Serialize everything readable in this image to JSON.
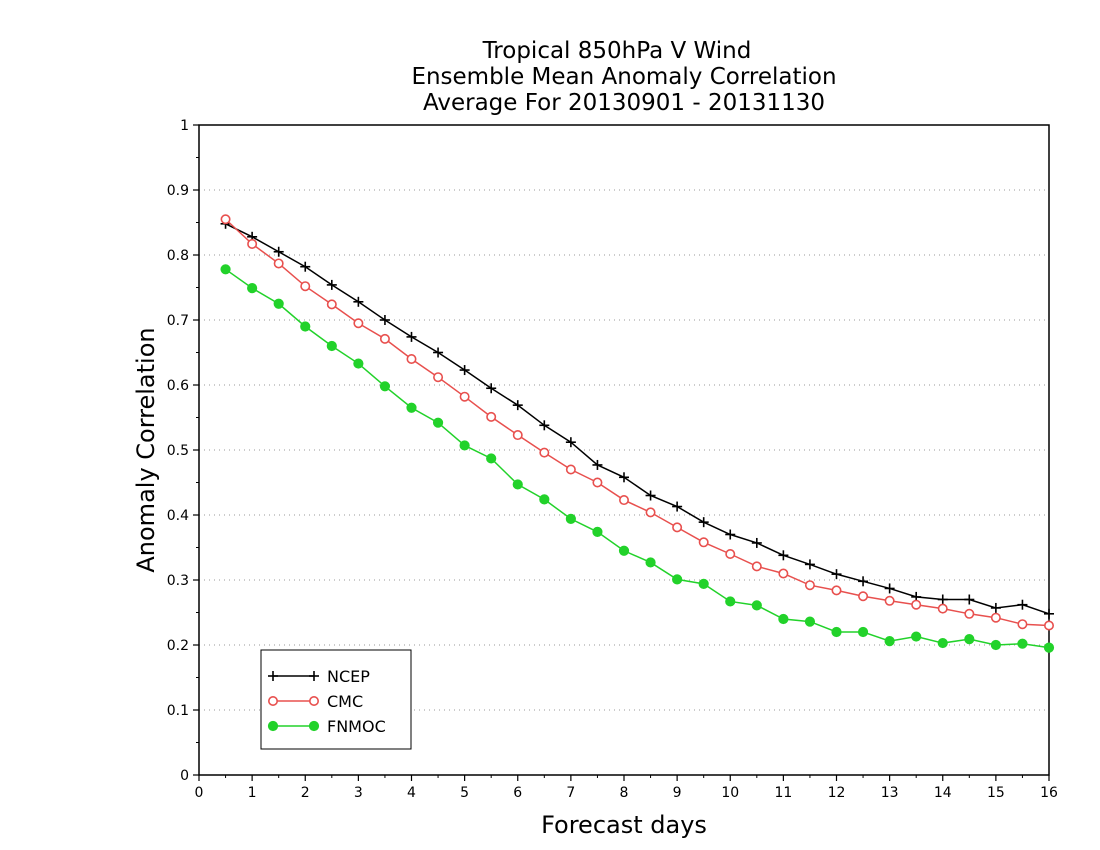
{
  "chart_data": {
    "type": "line",
    "title_lines": [
      "Tropical 850hPa V Wind",
      "Ensemble Mean Anomaly Correlation",
      "Average For 20130901 - 20131130"
    ],
    "xlabel": "Forecast days",
    "ylabel": "Anomaly Correlation",
    "xlim": [
      0,
      16
    ],
    "ylim": [
      0,
      1
    ],
    "x_ticks": [
      "0",
      "1",
      "2",
      "3",
      "4",
      "5",
      "6",
      "7",
      "8",
      "9",
      "10",
      "11",
      "12",
      "13",
      "14",
      "15",
      "16"
    ],
    "y_ticks": [
      "0",
      "0.1",
      "0.2",
      "0.3",
      "0.4",
      "0.5",
      "0.6",
      "0.7",
      "0.8",
      "0.9",
      "1"
    ],
    "grid": "horizontal dotted",
    "legend_position": "bottom-left",
    "x": [
      0.5,
      1,
      1.5,
      2,
      2.5,
      3,
      3.5,
      4,
      4.5,
      5,
      5.5,
      6,
      6.5,
      7,
      7.5,
      8,
      8.5,
      9,
      9.5,
      10,
      10.5,
      11,
      11.5,
      12,
      12.5,
      13,
      13.5,
      14,
      14.5,
      15,
      15.5,
      16
    ],
    "series": [
      {
        "name": "NCEP",
        "color": "#000000",
        "marker": "plus",
        "values": [
          0.848,
          0.828,
          0.805,
          0.782,
          0.754,
          0.728,
          0.7,
          0.674,
          0.65,
          0.623,
          0.595,
          0.569,
          0.538,
          0.512,
          0.477,
          0.458,
          0.43,
          0.413,
          0.389,
          0.37,
          0.357,
          0.338,
          0.324,
          0.309,
          0.298,
          0.287,
          0.274,
          0.27,
          0.27,
          0.257,
          0.262,
          0.248
        ]
      },
      {
        "name": "CMC",
        "color": "#e8504e",
        "marker": "open-circle",
        "values": [
          0.855,
          0.817,
          0.787,
          0.752,
          0.724,
          0.695,
          0.671,
          0.64,
          0.612,
          0.582,
          0.551,
          0.523,
          0.496,
          0.47,
          0.45,
          0.423,
          0.404,
          0.381,
          0.358,
          0.34,
          0.321,
          0.31,
          0.292,
          0.284,
          0.275,
          0.268,
          0.262,
          0.256,
          0.248,
          0.242,
          0.232,
          0.23
        ]
      },
      {
        "name": "FNMOC",
        "color": "#22d22a",
        "marker": "filled-circle",
        "values": [
          0.778,
          0.749,
          0.725,
          0.69,
          0.66,
          0.633,
          0.598,
          0.565,
          0.542,
          0.507,
          0.487,
          0.447,
          0.424,
          0.394,
          0.374,
          0.345,
          0.327,
          0.301,
          0.294,
          0.267,
          0.261,
          0.24,
          0.236,
          0.22,
          0.22,
          0.206,
          0.213,
          0.203,
          0.209,
          0.2,
          0.202,
          0.196
        ]
      }
    ]
  }
}
